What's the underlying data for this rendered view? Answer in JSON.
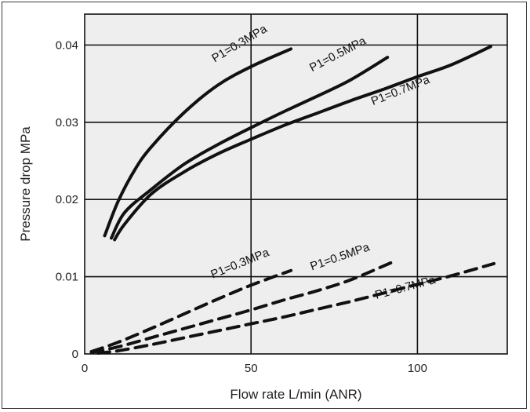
{
  "chart_data": {
    "type": "line",
    "xlabel": "Flow rate L/min (ANR)",
    "ylabel": "Pressure drop MPa",
    "xlim": [
      0,
      127
    ],
    "ylim": [
      0,
      0.044
    ],
    "x_ticks": [
      0,
      50,
      100
    ],
    "y_ticks": [
      0,
      0.01,
      0.02,
      0.03,
      0.04
    ],
    "x_tick_labels": [
      "0",
      "50",
      "100"
    ],
    "y_tick_labels": [
      "0",
      "0.01",
      "0.02",
      "0.03",
      "0.04"
    ],
    "grid": true,
    "plot_background": "#eeeeee",
    "line_color": "#111111",
    "series": [
      {
        "label": "P1=0.3MPa",
        "style": "solid",
        "x": [
          6,
          10,
          15,
          20,
          30,
          40,
          50,
          62
        ],
        "y": [
          0.0153,
          0.0197,
          0.0238,
          0.0268,
          0.0313,
          0.0348,
          0.0372,
          0.0395
        ]
      },
      {
        "label": "P1=0.5MPa",
        "style": "solid",
        "x": [
          8,
          12,
          20,
          30,
          40,
          50,
          60,
          70,
          80,
          91
        ],
        "y": [
          0.015,
          0.0183,
          0.0213,
          0.0246,
          0.0271,
          0.0293,
          0.0314,
          0.0334,
          0.0355,
          0.0384
        ]
      },
      {
        "label": "P1=0.7MPa",
        "style": "solid",
        "x": [
          9,
          12,
          20,
          30,
          40,
          50,
          60,
          70,
          80,
          90,
          100,
          110,
          122
        ],
        "y": [
          0.0148,
          0.0168,
          0.0207,
          0.0236,
          0.0259,
          0.0278,
          0.0296,
          0.0312,
          0.0328,
          0.0343,
          0.0359,
          0.0374,
          0.0398
        ]
      },
      {
        "label": "P1=0.3MPa",
        "style": "dashed",
        "x": [
          2,
          10,
          20,
          30,
          40,
          50,
          62
        ],
        "y": [
          0.0003,
          0.0015,
          0.0033,
          0.0052,
          0.0071,
          0.0089,
          0.0108
        ]
      },
      {
        "label": "P1=0.5MPa",
        "style": "dashed",
        "x": [
          2,
          10,
          20,
          30,
          40,
          50,
          60,
          70,
          80,
          92
        ],
        "y": [
          0.0002,
          0.0009,
          0.0021,
          0.0033,
          0.0045,
          0.0057,
          0.007,
          0.0082,
          0.0096,
          0.0118
        ]
      },
      {
        "label": "P1=0.7MPa",
        "style": "dashed",
        "x": [
          4,
          10,
          20,
          30,
          40,
          50,
          60,
          70,
          80,
          90,
          100,
          110,
          123
        ],
        "y": [
          0.0001,
          0.0004,
          0.0012,
          0.0021,
          0.003,
          0.0039,
          0.0048,
          0.0058,
          0.0068,
          0.0079,
          0.009,
          0.0101,
          0.0117
        ]
      }
    ]
  }
}
